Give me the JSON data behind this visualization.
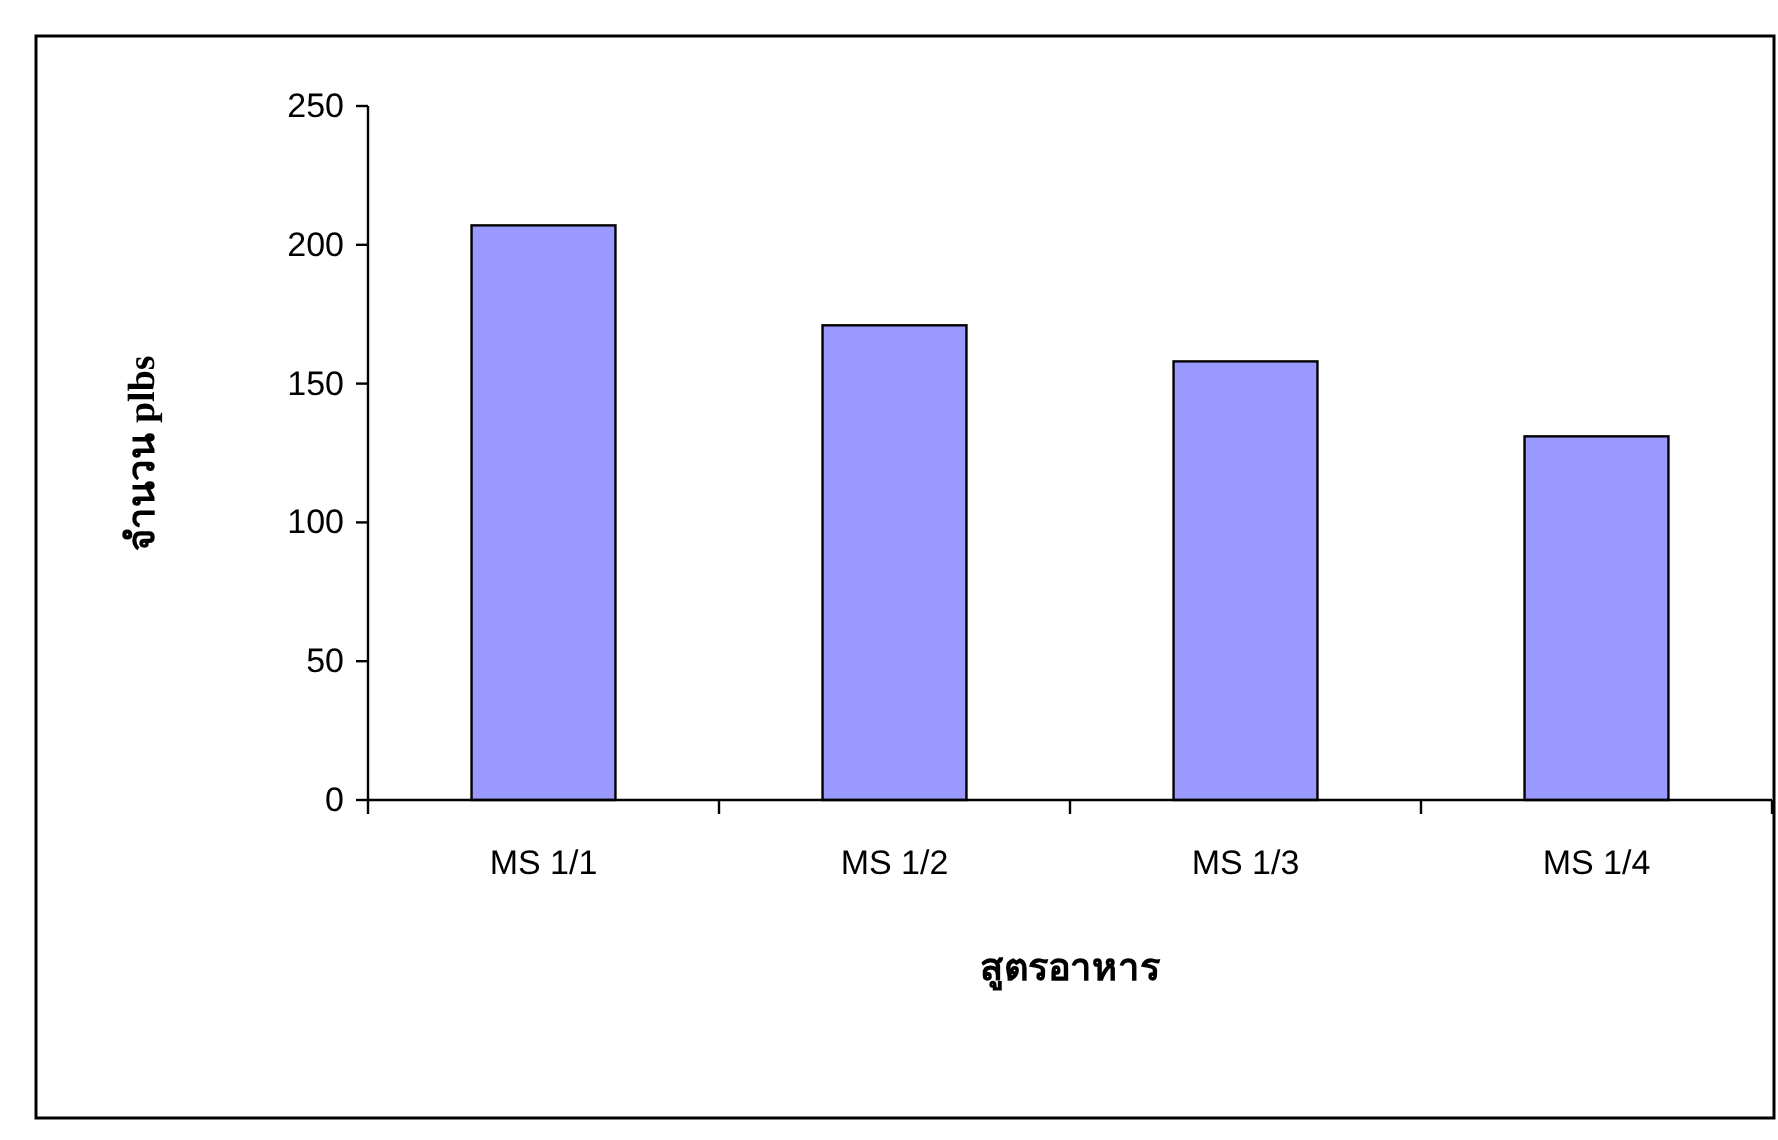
{
  "chart_data": {
    "type": "bar",
    "xlabel": "สูตรอาหาร",
    "ylabel": "จำนวน plbs",
    "categories": [
      "MS 1/1",
      "MS 1/2",
      "MS 1/3",
      "MS 1/4"
    ],
    "values": [
      207,
      171,
      158,
      131
    ],
    "color": "#9999ff",
    "ylim": [
      0,
      250
    ],
    "yticks": [
      0,
      50,
      100,
      150,
      200,
      250
    ],
    "grid": false
  }
}
